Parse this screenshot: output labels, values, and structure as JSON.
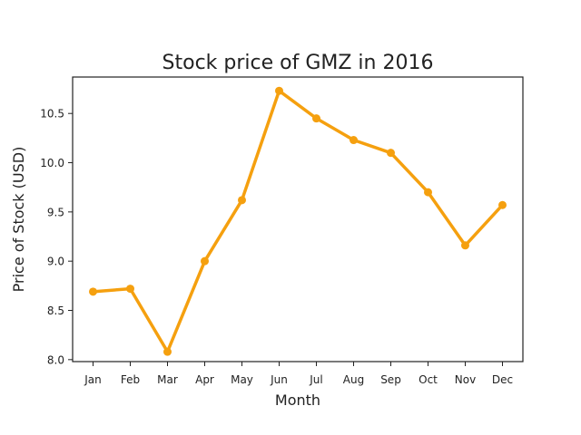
{
  "chart_data": {
    "type": "line",
    "title": "Stock price of GMZ in 2016",
    "xlabel": "Month",
    "ylabel": "Price of Stock (USD)",
    "categories": [
      "Jan",
      "Feb",
      "Mar",
      "Apr",
      "May",
      "Jun",
      "Jul",
      "Aug",
      "Sep",
      "Oct",
      "Nov",
      "Dec"
    ],
    "series": [
      {
        "values": [
          8.69,
          8.72,
          8.08,
          9.0,
          9.62,
          10.73,
          10.45,
          10.23,
          10.1,
          9.7,
          9.16,
          9.57
        ]
      }
    ],
    "yticks": [
      "8.0",
      "8.5",
      "9.0",
      "9.5",
      "10.0",
      "10.5"
    ],
    "ylim": [
      7.98,
      10.87
    ],
    "grid": false,
    "legend": "none",
    "colors": {
      "line": "#f5a00f",
      "axes": "#222222"
    }
  }
}
